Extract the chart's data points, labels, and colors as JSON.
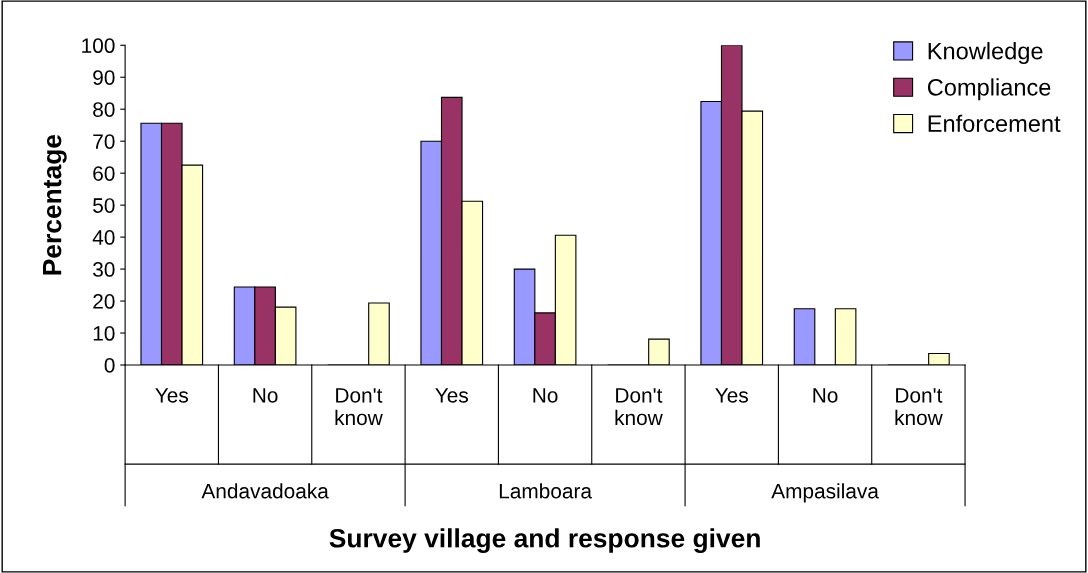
{
  "chart_data": {
    "type": "bar",
    "ylabel": "Percentage",
    "xlabel": "Survey village and response given",
    "categories": [
      "Yes",
      "No",
      "Don't\nknow",
      "Yes",
      "No",
      "Don't\nknow",
      "Yes",
      "No",
      "Don't\nknow"
    ],
    "annotations": [
      "Andavadoaka",
      "Lamboara",
      "Ampasilava"
    ],
    "series": [
      {
        "name": "Knowledge",
        "color": "#9999ff",
        "values": [
          75.6,
          24.4,
          0,
          70,
          30,
          0,
          82.4,
          17.6,
          0
        ]
      },
      {
        "name": "Compliance",
        "color": "#993366",
        "values": [
          75.6,
          24.4,
          0,
          83.7,
          16.3,
          0,
          100,
          0,
          0
        ]
      },
      {
        "name": "Enforcement",
        "color": "#ffffcc",
        "values": [
          62.5,
          18.1,
          19.4,
          51.2,
          40.6,
          8.1,
          79.4,
          17.6,
          3.6
        ]
      }
    ],
    "ylim": [
      0,
      100
    ],
    "yticks": [
      0,
      10,
      20,
      30,
      40,
      50,
      60,
      70,
      80,
      90,
      100
    ],
    "grid": false,
    "legend": "top right"
  }
}
